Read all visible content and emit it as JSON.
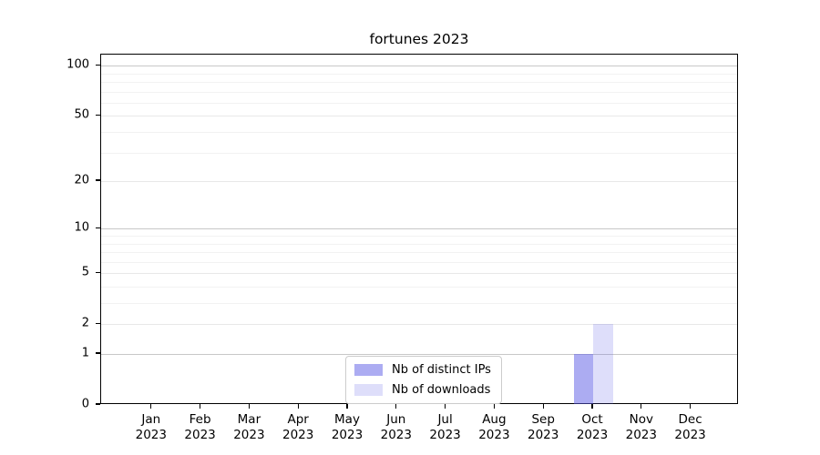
{
  "chart_data": {
    "type": "bar",
    "title": "fortunes 2023",
    "categories": [
      "Jan",
      "Feb",
      "Mar",
      "Apr",
      "May",
      "Jun",
      "Jul",
      "Aug",
      "Sep",
      "Oct",
      "Nov",
      "Dec"
    ],
    "x_tick_second_line": "2023",
    "series": [
      {
        "name": "Nb of distinct IPs",
        "color": "rgba(90,90,230,0.5)",
        "values": [
          0,
          0,
          0,
          0,
          0,
          0,
          0,
          0,
          0,
          1,
          0,
          0
        ]
      },
      {
        "name": "Nb of downloads",
        "color": "rgba(90,90,230,0.2)",
        "values": [
          0,
          0,
          0,
          0,
          0,
          0,
          0,
          0,
          0,
          2,
          0,
          0
        ]
      }
    ],
    "yscale": "log1p",
    "yticks": [
      0,
      1,
      2,
      5,
      10,
      20,
      50,
      100
    ],
    "ylim": [
      0,
      115
    ],
    "grid": {
      "major_values": [
        1,
        10,
        100
      ],
      "labeled_minor_values": [
        2,
        5,
        20,
        50
      ],
      "minor_values": [
        3,
        4,
        6,
        7,
        8,
        9,
        30,
        40,
        60,
        70,
        80,
        90
      ],
      "major_color": "#c8c8c8",
      "labeled_minor_color": "#e8e8e8",
      "minor_color": "#f2f2f2"
    },
    "legend": {
      "position": "lower center"
    },
    "axis_color": "#000000"
  }
}
